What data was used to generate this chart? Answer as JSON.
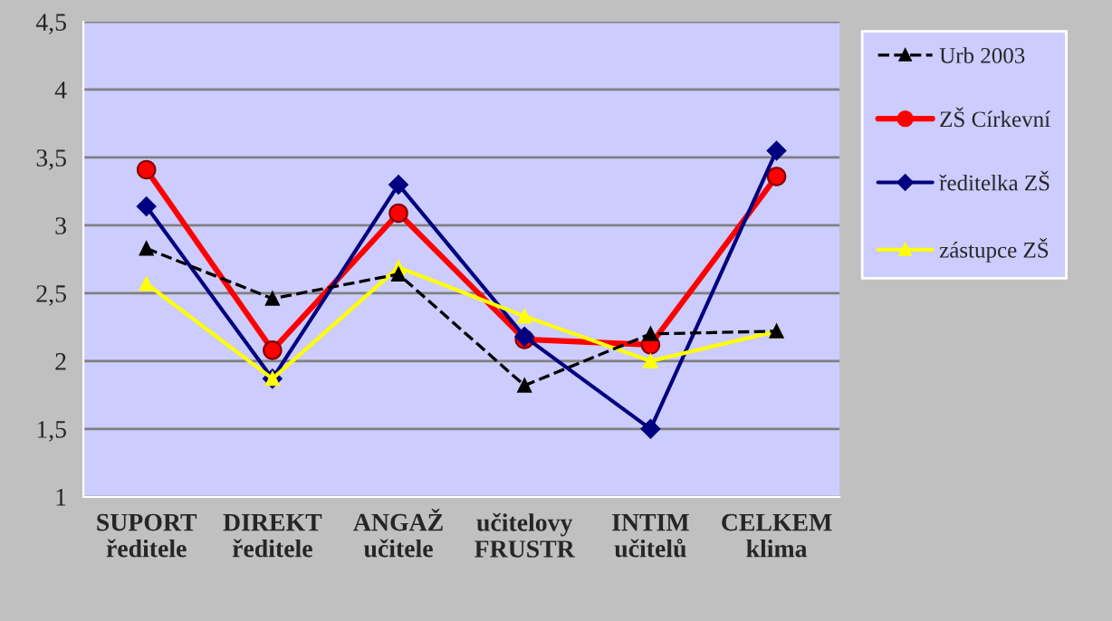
{
  "chart_data": {
    "type": "line",
    "categories": [
      "SUPORT\nředitele",
      "DIREKT\nředitele",
      "ANGAŽ\nučitele",
      "učitelovy\nFRUSTR",
      "INTIM\nučitelů",
      "CELKEM\nklima"
    ],
    "series": [
      {
        "name": "Urb 2003",
        "color": "#000000",
        "marker": "triangle",
        "line_style": "dashed",
        "values": [
          2.83,
          2.46,
          2.64,
          1.82,
          2.2,
          2.22
        ]
      },
      {
        "name": "ZŠ Církevní",
        "color": "#ff0000",
        "marker": "circle",
        "line_style": "solid",
        "values": [
          3.41,
          2.08,
          3.09,
          2.16,
          2.12,
          3.36
        ]
      },
      {
        "name": "ředitelka ZŠ",
        "color": "#000080",
        "marker": "diamond",
        "line_style": "solid",
        "values": [
          3.14,
          1.87,
          3.3,
          2.18,
          1.5,
          3.55
        ]
      },
      {
        "name": "zástupce ZŠ",
        "color": "#ffff00",
        "marker": "triangle",
        "line_style": "solid",
        "values": [
          2.57,
          1.87,
          2.69,
          2.33,
          2.0,
          2.22
        ]
      }
    ],
    "ylim": [
      1,
      4.5
    ],
    "yticks": [
      {
        "value": 1,
        "label": "1"
      },
      {
        "value": 1.5,
        "label": "1,5"
      },
      {
        "value": 2,
        "label": "2"
      },
      {
        "value": 2.5,
        "label": "2,5"
      },
      {
        "value": 3,
        "label": "3"
      },
      {
        "value": 3.5,
        "label": "3,5"
      },
      {
        "value": 4,
        "label": "4"
      },
      {
        "value": 4.5,
        "label": "4,5"
      }
    ],
    "grid": "y",
    "legend": "right"
  }
}
